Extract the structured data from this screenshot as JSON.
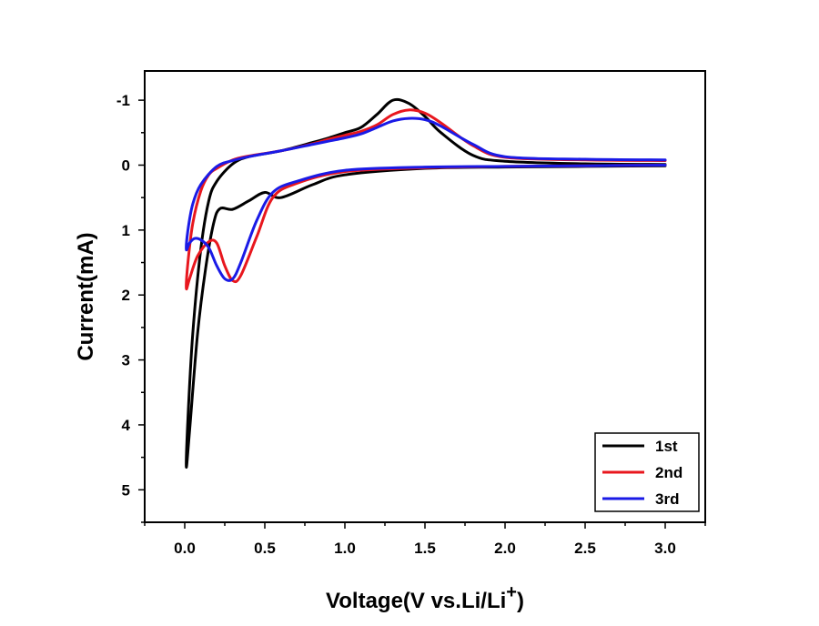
{
  "chart_data": {
    "type": "line",
    "title": "",
    "xlabel": "Voltage(V vs.Li/Li",
    "xlabel_sup": "+",
    "xlabel_close": ")",
    "ylabel": "Current(mA)",
    "xlim": [
      -0.25,
      3.25
    ],
    "ylim": [
      -1.45,
      5.5
    ],
    "y_inverted": true,
    "x_ticks": [
      0.0,
      0.5,
      1.0,
      1.5,
      2.0,
      2.5,
      3.0
    ],
    "x_tick_labels": [
      "0.0",
      "0.5",
      "1.0",
      "1.5",
      "2.0",
      "2.5",
      "3.0"
    ],
    "y_ticks": [
      -1,
      0,
      1,
      2,
      3,
      4,
      5
    ],
    "y_tick_labels": [
      "-1",
      "0",
      "1",
      "2",
      "3",
      "4",
      "5"
    ],
    "grid": false,
    "legend_position": "bottom-right",
    "series": [
      {
        "name": "1st",
        "color": "#000000",
        "x": [
          3.0,
          2.5,
          2.0,
          1.8,
          1.6,
          1.5,
          1.4,
          1.3,
          1.2,
          1.1,
          1.0,
          0.9,
          0.8,
          0.6,
          0.4,
          0.3,
          0.2,
          0.15,
          0.1,
          0.05,
          0.02,
          0.01,
          0.03,
          0.08,
          0.13,
          0.18,
          0.22,
          0.3,
          0.4,
          0.5,
          0.6,
          0.8,
          1.0,
          1.5,
          2.0,
          2.5,
          3.0
        ],
        "y": [
          -0.01,
          -0.02,
          -0.06,
          -0.15,
          -0.5,
          -0.75,
          -0.95,
          -1.0,
          -0.78,
          -0.58,
          -0.5,
          -0.42,
          -0.35,
          -0.22,
          -0.13,
          -0.02,
          0.25,
          0.55,
          1.3,
          2.6,
          3.9,
          4.65,
          4.1,
          2.6,
          1.6,
          0.9,
          0.67,
          0.68,
          0.55,
          0.42,
          0.5,
          0.3,
          0.15,
          0.05,
          0.03,
          0.02,
          0.01
        ]
      },
      {
        "name": "2nd",
        "color": "#e8171e",
        "x": [
          3.0,
          2.5,
          2.0,
          1.8,
          1.6,
          1.5,
          1.4,
          1.3,
          1.2,
          1.1,
          1.0,
          0.9,
          0.8,
          0.6,
          0.4,
          0.3,
          0.2,
          0.15,
          0.1,
          0.05,
          0.02,
          0.01,
          0.03,
          0.08,
          0.15,
          0.2,
          0.25,
          0.3,
          0.35,
          0.45,
          0.55,
          0.7,
          1.0,
          1.5,
          2.0,
          2.5,
          3.0
        ],
        "y": [
          -0.07,
          -0.08,
          -0.12,
          -0.3,
          -0.65,
          -0.8,
          -0.85,
          -0.78,
          -0.62,
          -0.52,
          -0.46,
          -0.4,
          -0.33,
          -0.22,
          -0.14,
          -0.08,
          0.05,
          0.15,
          0.4,
          0.9,
          1.5,
          1.9,
          1.75,
          1.4,
          1.18,
          1.2,
          1.55,
          1.78,
          1.7,
          1.1,
          0.5,
          0.28,
          0.1,
          0.04,
          0.02,
          0.01,
          0.0
        ]
      },
      {
        "name": "3rd",
        "color": "#1a1ae6",
        "x": [
          3.0,
          2.5,
          2.0,
          1.8,
          1.6,
          1.5,
          1.4,
          1.3,
          1.2,
          1.1,
          1.0,
          0.9,
          0.8,
          0.6,
          0.4,
          0.3,
          0.2,
          0.1,
          0.05,
          0.02,
          0.01,
          0.03,
          0.06,
          0.1,
          0.15,
          0.2,
          0.25,
          0.3,
          0.35,
          0.45,
          0.55,
          0.7,
          1.0,
          1.5,
          2.0,
          2.5,
          3.0
        ],
        "y": [
          -0.08,
          -0.09,
          -0.13,
          -0.32,
          -0.6,
          -0.7,
          -0.72,
          -0.68,
          -0.58,
          -0.48,
          -0.42,
          -0.37,
          -0.32,
          -0.22,
          -0.13,
          -0.07,
          0.02,
          0.3,
          0.6,
          1.0,
          1.3,
          1.2,
          1.13,
          1.15,
          1.27,
          1.55,
          1.75,
          1.75,
          1.5,
          0.85,
          0.42,
          0.25,
          0.08,
          0.03,
          0.02,
          0.01,
          0.0
        ]
      }
    ]
  }
}
